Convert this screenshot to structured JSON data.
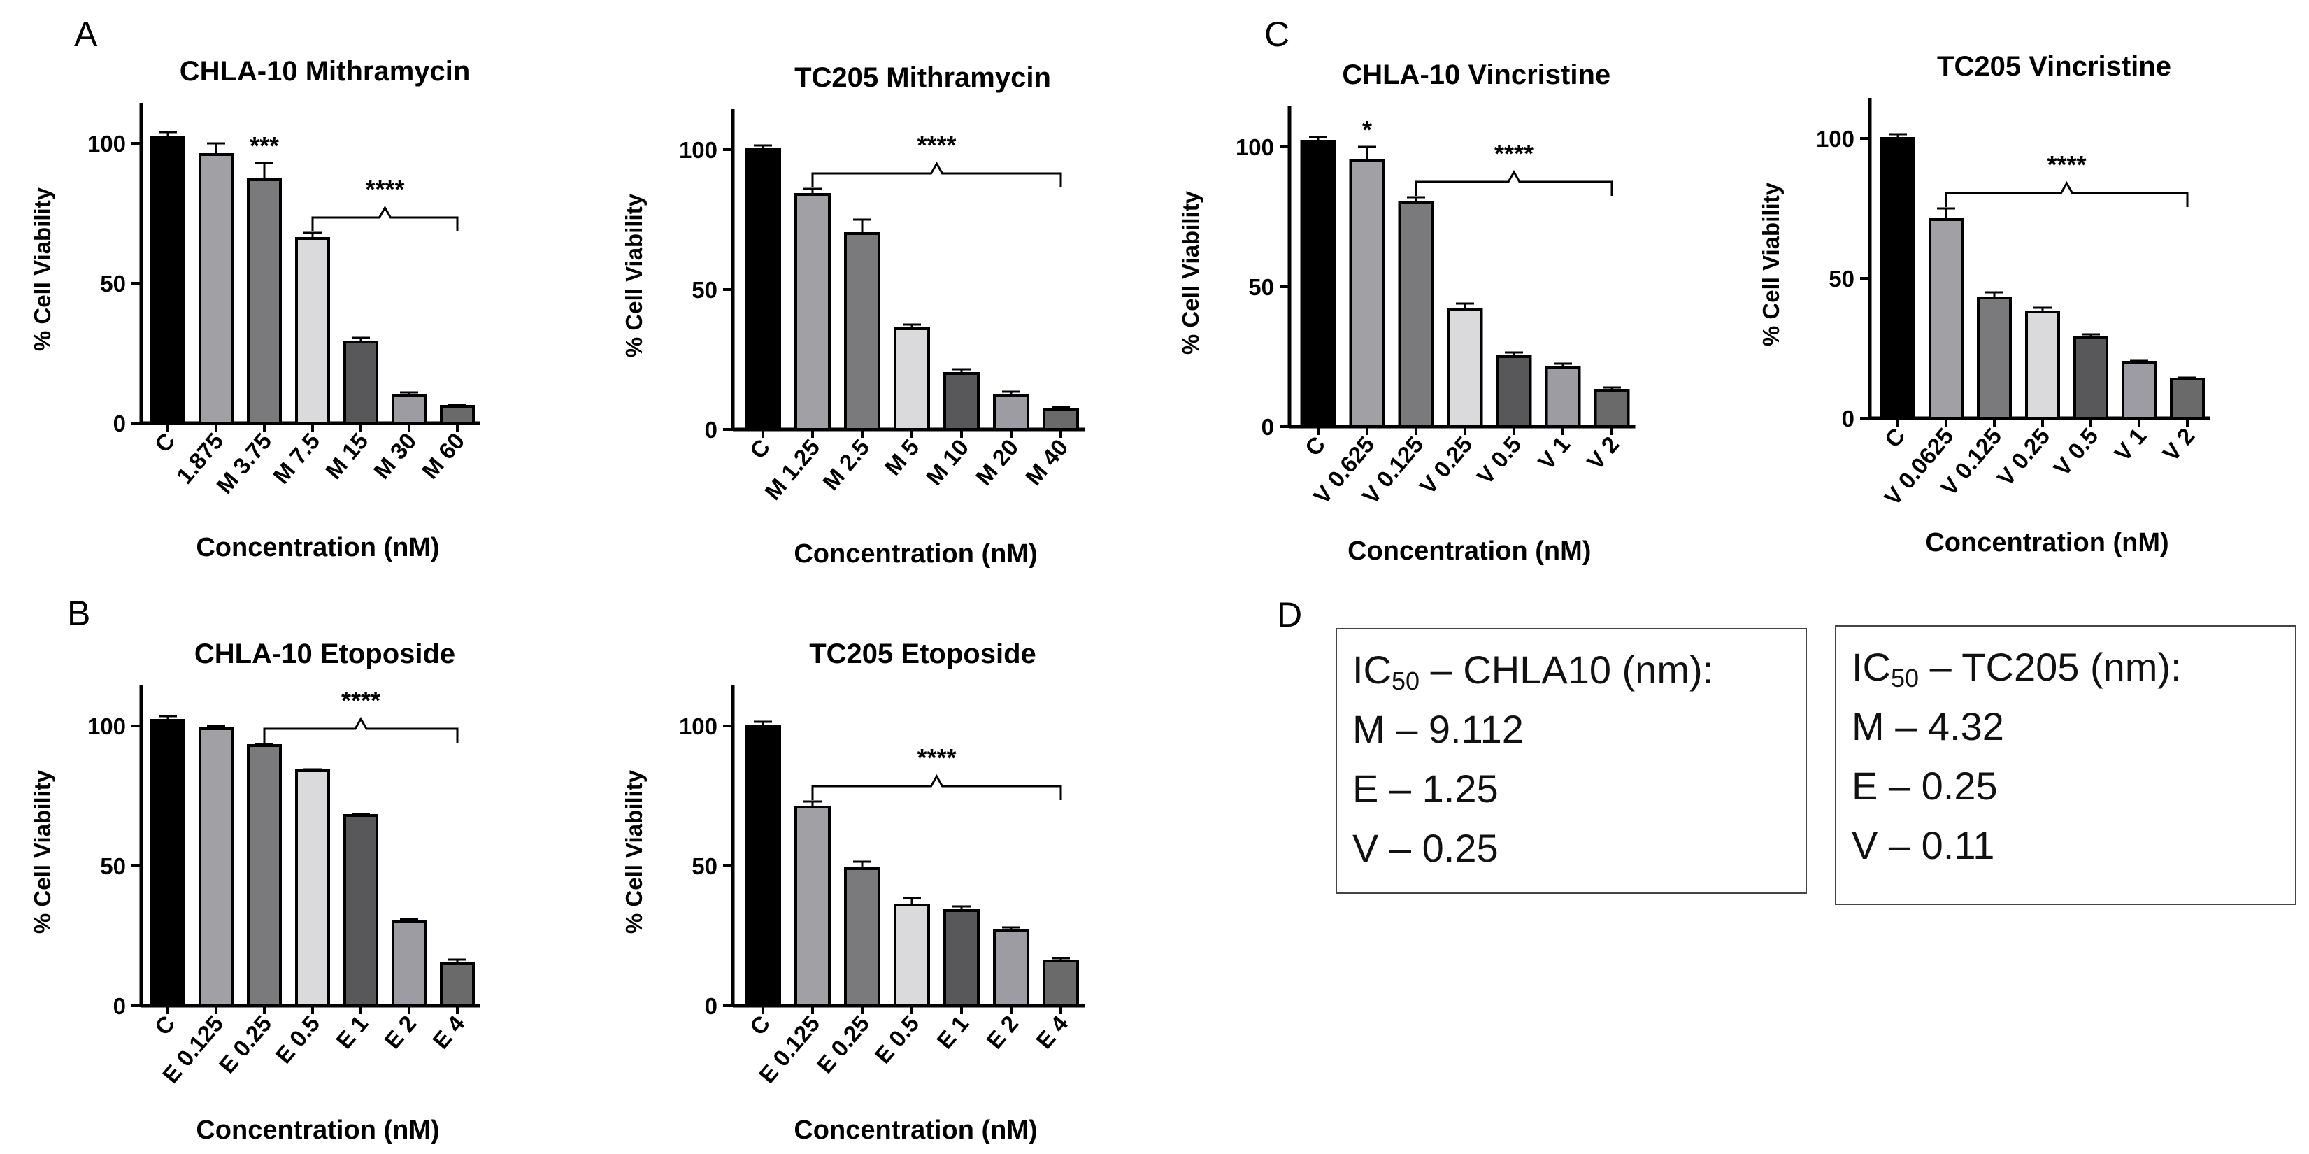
{
  "panel_letters": [
    "A",
    "B",
    "C",
    "D"
  ],
  "colors": {
    "black": "#000000",
    "gray_medium": "#a0a0a5",
    "gray_dark": "#7a7a7d",
    "gray_light": "#dadadc",
    "gray_darker": "#58585b",
    "gray_lighter": "#9c9ca2",
    "gray_plain": "#6a6a6a"
  },
  "chart_data": [
    {
      "type": "bar",
      "title": "CHLA-10 Mithramycin",
      "xlabel": "Concentration (nM)",
      "ylabel": "% Cell Viability",
      "ylim": [
        0,
        110
      ],
      "yticks": [
        0,
        50,
        100
      ],
      "categories": [
        "C",
        "1.875",
        "M 3.75",
        "M 7.5",
        "M 15",
        "M 30",
        "M 60"
      ],
      "values": [
        102,
        96,
        87,
        66,
        29,
        10,
        6
      ],
      "errors": [
        2,
        4,
        6,
        2,
        1.5,
        1,
        0.5
      ],
      "bar_colors": [
        "#000000",
        "#a0a0a5",
        "#7a7a7d",
        "#dadadc",
        "#58585b",
        "#9c9ca2",
        "#6a6a6a"
      ],
      "annotations": [
        {
          "text": "***",
          "type": "star",
          "index": 2
        },
        {
          "text": "****",
          "type": "bracket",
          "from": 3,
          "to": 6
        }
      ]
    },
    {
      "type": "bar",
      "title": "TC205 Mithramycin",
      "xlabel": "Concentration (nM)",
      "ylabel": "% Cell Viability",
      "ylim": [
        0,
        110
      ],
      "yticks": [
        0,
        50,
        100
      ],
      "categories": [
        "C",
        "M 1.25",
        "M 2.5",
        "M 5",
        "M 10",
        "M 20",
        "M 40"
      ],
      "values": [
        100,
        84,
        70,
        36,
        20,
        12,
        7
      ],
      "errors": [
        1.5,
        2,
        5,
        1.5,
        1.5,
        1.5,
        1
      ],
      "bar_colors": [
        "#000000",
        "#a0a0a5",
        "#7a7a7d",
        "#dadadc",
        "#58585b",
        "#9c9ca2",
        "#6a6a6a"
      ],
      "annotations": [
        {
          "text": "****",
          "type": "bracket",
          "from": 1,
          "to": 6
        }
      ]
    },
    {
      "type": "bar",
      "title": "CHLA-10 Vincristine",
      "xlabel": "Concentration (nM)",
      "ylabel": "% Cell Viability",
      "ylim": [
        0,
        110
      ],
      "yticks": [
        0,
        50,
        100
      ],
      "categories": [
        "C",
        "V 0.625",
        "V 0.125",
        "V 0.25",
        "V 0.5",
        "V 1",
        "V 2"
      ],
      "values": [
        102,
        95,
        80,
        42,
        25,
        21,
        13
      ],
      "errors": [
        1.5,
        5,
        2,
        2,
        1.5,
        1.5,
        1
      ],
      "bar_colors": [
        "#000000",
        "#a0a0a5",
        "#7a7a7d",
        "#dadadc",
        "#58585b",
        "#9c9ca2",
        "#6a6a6a"
      ],
      "annotations": [
        {
          "text": "*",
          "type": "star",
          "index": 1
        },
        {
          "text": "****",
          "type": "bracket",
          "from": 2,
          "to": 6
        }
      ]
    },
    {
      "type": "bar",
      "title": "TC205 Vincristine",
      "xlabel": "Concentration (nM)",
      "ylabel": "% Cell Viability",
      "ylim": [
        0,
        110
      ],
      "yticks": [
        0,
        50,
        100
      ],
      "categories": [
        "C",
        "V 0.0625",
        "V 0.125",
        "V 0.25",
        "V 0.5",
        "V 1",
        "V 2"
      ],
      "values": [
        100,
        71,
        43,
        38,
        29,
        20,
        14
      ],
      "errors": [
        1.5,
        4,
        2,
        1.5,
        1,
        0.5,
        0.5
      ],
      "bar_colors": [
        "#000000",
        "#a0a0a5",
        "#7a7a7d",
        "#dadadc",
        "#58585b",
        "#9c9ca2",
        "#6a6a6a"
      ],
      "annotations": [
        {
          "text": "****",
          "type": "bracket",
          "from": 1,
          "to": 6
        }
      ]
    },
    {
      "type": "bar",
      "title": "CHLA-10 Etoposide",
      "xlabel": "Concentration (nM)",
      "ylabel": "% Cell Viability",
      "ylim": [
        0,
        110
      ],
      "yticks": [
        0,
        50,
        100
      ],
      "categories": [
        "C",
        "E 0.125",
        "E 0.25",
        "E 0.5",
        "E 1",
        "E 2",
        "E 4"
      ],
      "values": [
        102,
        99,
        93,
        84,
        68,
        30,
        15
      ],
      "errors": [
        1.5,
        1,
        0.5,
        0.5,
        0.5,
        1,
        1.5
      ],
      "bar_colors": [
        "#000000",
        "#a0a0a5",
        "#7a7a7d",
        "#dadadc",
        "#58585b",
        "#9c9ca2",
        "#6a6a6a"
      ],
      "annotations": [
        {
          "text": "****",
          "type": "bracket",
          "from": 2,
          "to": 6
        }
      ]
    },
    {
      "type": "bar",
      "title": "TC205 Etoposide",
      "xlabel": "Concentration (nM)",
      "ylabel": "% Cell Viability",
      "ylim": [
        0,
        110
      ],
      "yticks": [
        0,
        50,
        100
      ],
      "categories": [
        "C",
        "E 0.125",
        "E 0.25",
        "E 0.5",
        "E 1",
        "E 2",
        "E 4"
      ],
      "values": [
        100,
        71,
        49,
        36,
        34,
        27,
        16
      ],
      "errors": [
        1.5,
        2,
        2.5,
        2.5,
        1.5,
        1,
        1
      ],
      "bar_colors": [
        "#000000",
        "#a0a0a5",
        "#7a7a7d",
        "#dadadc",
        "#58585b",
        "#9c9ca2",
        "#6a6a6a"
      ],
      "annotations": [
        {
          "text": "****",
          "type": "bracket",
          "from": 1,
          "to": 6
        }
      ]
    }
  ],
  "ic50": [
    {
      "heading_prefix": "IC",
      "heading_sub": "50",
      "heading_suffix": " – CHLA10 (nm):",
      "lines": [
        "M – 9.112",
        "E – 1.25",
        "V – 0.25"
      ]
    },
    {
      "heading_prefix": "IC",
      "heading_sub": "50",
      "heading_suffix": " – TC205 (nm):",
      "lines": [
        "M – 4.32",
        "E – 0.25",
        "V – 0.11"
      ]
    }
  ]
}
